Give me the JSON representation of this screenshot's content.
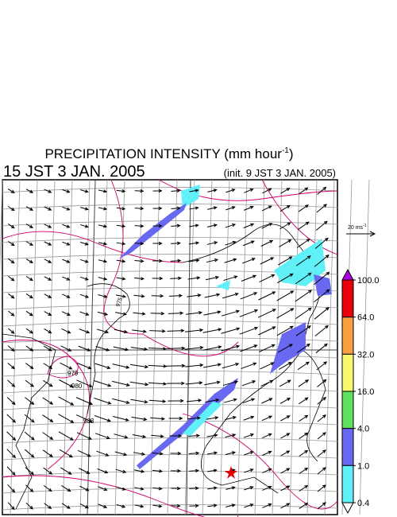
{
  "header": {
    "title": {
      "text": "PRECIPITATION INTENSITY (mm hour",
      "sup": "-1",
      "close": ")"
    },
    "valid_time": "15 JST 3 JAN. 2005",
    "init_time": "(init. 9 JST 3 JAN. 2005)"
  },
  "wind_scale": {
    "text": "20 ms",
    "sup": "-1"
  },
  "colorbar": {
    "ticks": [
      {
        "value": 100,
        "label": "100.0"
      },
      {
        "value": 64,
        "label": "64.0"
      },
      {
        "value": 32,
        "label": "32.0"
      },
      {
        "value": 16,
        "label": "16.0"
      },
      {
        "value": 4,
        "label": "4.0"
      },
      {
        "value": 1,
        "label": "1.0"
      },
      0.4
    ],
    "colors": [
      "#b000e0",
      "#e8000a",
      "#f6a040",
      "#f8f870",
      "#60e060",
      "#6868f0",
      "#60f0f8",
      "#ffffff"
    ]
  },
  "contour_labels": [
    "975",
    "979",
    "980",
    "983"
  ]
}
